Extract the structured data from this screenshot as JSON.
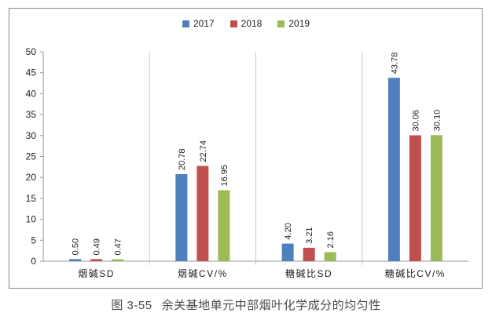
{
  "chart_data": {
    "type": "bar",
    "categories": [
      "烟碱SD",
      "烟碱CV/%",
      "糖碱比SD",
      "糖碱比CV/%"
    ],
    "series": [
      {
        "name": "2017",
        "color": "#4f7fbd",
        "values": [
          0.5,
          20.78,
          4.2,
          43.78
        ],
        "labels": [
          "0.50",
          "20.78",
          "4.20",
          "43.78"
        ]
      },
      {
        "name": "2018",
        "color": "#c0504d",
        "values": [
          0.49,
          22.74,
          3.21,
          30.06
        ],
        "labels": [
          "0.49",
          "22.74",
          "3.21",
          "30.06"
        ]
      },
      {
        "name": "2019",
        "color": "#9bbb59",
        "values": [
          0.47,
          16.95,
          2.16,
          30.1
        ],
        "labels": [
          "0.47",
          "16.95",
          "2.16",
          "30.10"
        ]
      }
    ],
    "ylim": [
      0,
      50
    ],
    "yticks": [
      0,
      5,
      10,
      15,
      20,
      25,
      30,
      35,
      40,
      45,
      50
    ],
    "grid": false,
    "legend_position": "top-center"
  },
  "caption": {
    "number": "图 3-55",
    "text": "余关基地单元中部烟叶化学成分的均匀性"
  }
}
